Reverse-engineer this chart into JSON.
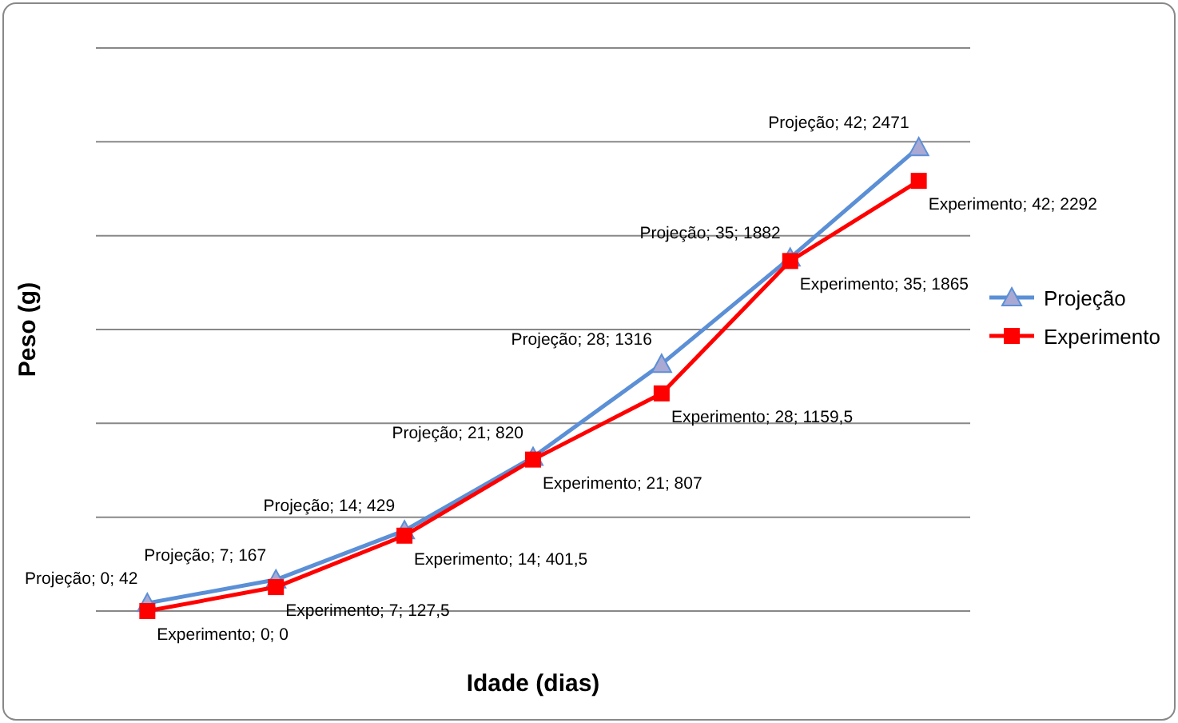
{
  "chart_data": {
    "type": "line",
    "xlabel": "Idade (dias)",
    "ylabel": "Peso (g)",
    "categories": [
      null,
      null,
      null,
      null,
      null,
      null,
      null
    ],
    "ylim": [
      0,
      3000
    ],
    "yticks": [
      {
        "value": 0,
        "label": null
      },
      {
        "value": 500,
        "label": null
      },
      {
        "value": 1000,
        "label": null
      },
      {
        "value": 1500,
        "label": null
      },
      {
        "value": 2000,
        "label": null
      },
      {
        "value": 2500,
        "label": null
      },
      {
        "value": 3000,
        "label": null
      }
    ],
    "grid": "y",
    "legend": "right",
    "series": [
      {
        "name": "Projeção",
        "color": "#5b8fd6",
        "marker": "triangle",
        "values": [
          42,
          167,
          429,
          820,
          1316,
          1882,
          2471
        ],
        "value_labels": [
          "Projeção; 0; 42",
          "Projeção; 7; 167",
          "Projeção; 14; 429",
          "Projeção; 21; 820",
          "Projeção; 28; 1316",
          "Projeção; 35; 1882",
          "Projeção; 42; 2471"
        ]
      },
      {
        "name": "Experimento",
        "color": "#ff0000",
        "marker": "square",
        "values": [
          0,
          127.5,
          401.5,
          807,
          1159.5,
          1865,
          2292
        ],
        "value_labels": [
          "Experimento; 0; 0",
          "Experimento; 7; 127,5",
          "Experimento; 14; 401,5",
          "Experimento; 21; 807",
          "Experimento; 28; 1159,5",
          "Experimento; 35; 1865",
          "Experimento; 42; 2292"
        ]
      }
    ]
  }
}
